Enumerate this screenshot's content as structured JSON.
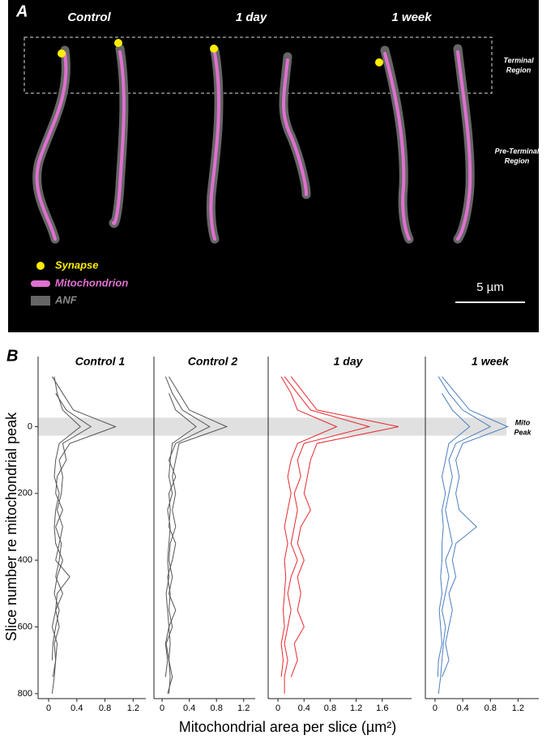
{
  "panel_a": {
    "label": "A",
    "groups": [
      "Control",
      "1 day",
      "1 week"
    ],
    "terminal_label": [
      "Terminal",
      "Region"
    ],
    "preterminal_label": [
      "Pre-Terminal",
      "Region"
    ],
    "legend": [
      "Synapse",
      "Mitochondrion",
      "ANF"
    ],
    "scale_label": "5 µm"
  },
  "panel_b": {
    "label": "B",
    "y_label": "Slice number re mitochondrial peak",
    "x_label": "Mitochondrial area per slice (µm²)",
    "peak_label": [
      "Mito",
      "Peak"
    ],
    "peak_band": [
      -27,
      27
    ]
  },
  "chart_data": [
    {
      "type": "line",
      "title": "Control 1",
      "color": "#555555",
      "x": [
        -150,
        -100,
        -50,
        0,
        50,
        100,
        150,
        200,
        250,
        300,
        350,
        400,
        450,
        500,
        550,
        600,
        650,
        700,
        750,
        800
      ],
      "xlim": [
        -210,
        810
      ],
      "xticks": [
        0,
        200,
        400,
        600,
        800
      ],
      "ylim": [
        -0.15,
        1.38
      ],
      "yticks": [
        0,
        0.4,
        0.8,
        1.2
      ],
      "series": [
        {
          "values": [
            0.05,
            0.2,
            0.35,
            0.95,
            0.3,
            0.15,
            0.2,
            0.18,
            0.12,
            0.2,
            0.15,
            0.1,
            0.3,
            0.12,
            0.1,
            0.15,
            0.08,
            0.1,
            0.06,
            null
          ]
        },
        {
          "values": [
            null,
            0.1,
            0.25,
            0.6,
            0.2,
            0.25,
            0.12,
            0.1,
            0.2,
            0.1,
            0.18,
            0.15,
            0.1,
            0.2,
            0.1,
            0.05,
            0.12,
            0.1,
            0.08,
            0.05
          ]
        },
        {
          "values": [
            0.08,
            0.12,
            0.2,
            0.45,
            0.15,
            0.1,
            0.08,
            0.15,
            0.1,
            0.08,
            0.1,
            0.2,
            0.12,
            0.08,
            0.15,
            0.1,
            0.06,
            0.05,
            null,
            null
          ]
        }
      ]
    },
    {
      "type": "line",
      "title": "Control 2",
      "color": "#555555",
      "x": [
        -150,
        -100,
        -50,
        0,
        50,
        100,
        150,
        200,
        250,
        300,
        350,
        400,
        450,
        500,
        550,
        600,
        650,
        700,
        750,
        800
      ],
      "xlim": [
        -210,
        810
      ],
      "ylim": [
        -0.12,
        1.37
      ],
      "yticks": [
        0,
        0.4,
        0.8,
        1.2
      ],
      "series": [
        {
          "values": [
            0.1,
            0.25,
            0.4,
            0.95,
            0.25,
            0.2,
            0.15,
            0.2,
            0.15,
            0.2,
            0.12,
            0.1,
            0.15,
            0.1,
            0.2,
            0.1,
            0.12,
            0.1,
            0.15,
            0.08
          ]
        },
        {
          "values": [
            0.05,
            0.15,
            0.3,
            0.7,
            0.2,
            0.1,
            0.2,
            0.1,
            0.12,
            0.1,
            0.2,
            0.15,
            0.08,
            0.12,
            0.1,
            0.15,
            0.06,
            0.1,
            0.12,
            0.1
          ]
        },
        {
          "values": [
            null,
            0.1,
            0.2,
            0.5,
            0.15,
            0.12,
            0.1,
            0.15,
            0.08,
            0.12,
            0.1,
            0.08,
            0.1,
            0.06,
            0.08,
            0.1,
            0.05,
            0.08,
            0.05,
            null
          ]
        }
      ]
    },
    {
      "type": "line",
      "title": "1 day",
      "color": "#e8282c",
      "x": [
        -150,
        -100,
        -50,
        0,
        50,
        100,
        150,
        200,
        250,
        300,
        350,
        400,
        450,
        500,
        550,
        600,
        650,
        700,
        750,
        800
      ],
      "xlim": [
        -210,
        810
      ],
      "ylim": [
        -0.15,
        2.05
      ],
      "yticks": [
        0,
        0.4,
        0.8,
        1.2,
        1.6
      ],
      "series": [
        {
          "values": [
            0.2,
            0.4,
            0.6,
            1.85,
            0.6,
            0.5,
            0.45,
            0.4,
            0.5,
            0.35,
            0.3,
            0.4,
            0.3,
            0.35,
            0.3,
            0.4,
            0.25,
            0.3,
            0.2,
            null
          ]
        },
        {
          "values": [
            0.1,
            0.3,
            0.5,
            1.4,
            0.4,
            0.3,
            0.35,
            0.25,
            0.3,
            0.25,
            0.2,
            0.3,
            0.2,
            0.15,
            0.2,
            0.15,
            0.1,
            0.15,
            0.1,
            0.1
          ]
        },
        {
          "values": [
            0.05,
            0.2,
            0.3,
            0.9,
            0.3,
            0.2,
            0.15,
            0.2,
            0.15,
            0.1,
            0.15,
            0.1,
            0.12,
            0.1,
            0.08,
            0.1,
            0.05,
            0.08,
            0.05,
            null
          ]
        }
      ]
    },
    {
      "type": "line",
      "title": "1 week",
      "color": "#4a7fc1",
      "x": [
        -150,
        -100,
        -50,
        0,
        50,
        100,
        150,
        200,
        250,
        300,
        350,
        400,
        450,
        500,
        550,
        600,
        650,
        700,
        750,
        800
      ],
      "xlim": [
        -210,
        810
      ],
      "ylim": [
        -0.14,
        1.5
      ],
      "yticks": [
        0,
        0.4,
        0.8,
        1.2
      ],
      "series": [
        {
          "values": [
            0.1,
            0.3,
            0.5,
            1.05,
            0.4,
            0.3,
            0.35,
            0.3,
            0.35,
            0.6,
            0.3,
            0.25,
            0.3,
            0.2,
            0.25,
            0.2,
            0.15,
            0.2,
            0.1,
            null
          ]
        },
        {
          "values": [
            0.05,
            0.2,
            0.4,
            0.8,
            0.3,
            0.2,
            0.25,
            0.2,
            0.15,
            0.2,
            0.25,
            0.15,
            0.2,
            0.15,
            0.1,
            0.15,
            0.12,
            0.1,
            0.08,
            0.05
          ]
        },
        {
          "values": [
            null,
            0.1,
            0.25,
            0.5,
            0.2,
            0.15,
            0.1,
            0.15,
            0.1,
            0.12,
            0.1,
            0.1,
            0.08,
            0.1,
            0.06,
            0.08,
            0.1,
            0.05,
            0.04,
            null
          ]
        }
      ]
    }
  ]
}
